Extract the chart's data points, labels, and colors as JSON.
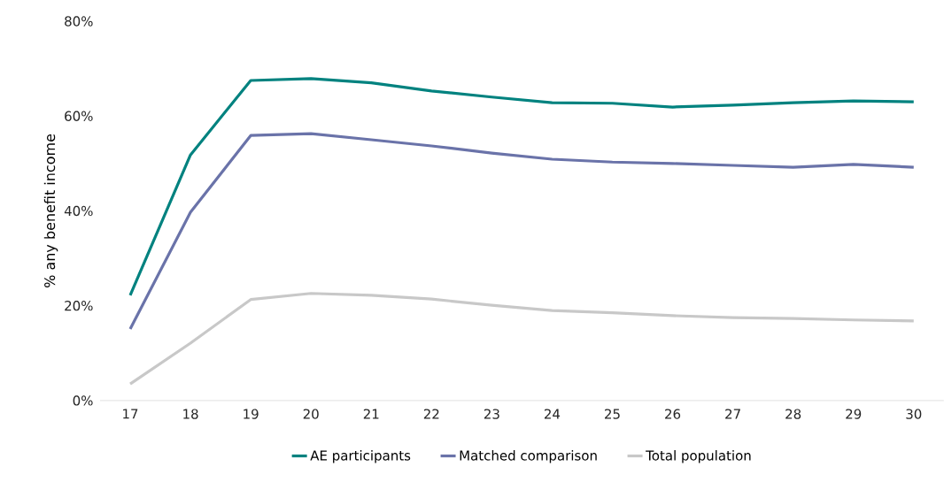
{
  "chart_data": {
    "type": "line",
    "ylabel": "% any benefit income",
    "categories": [
      "17",
      "18",
      "19",
      "20",
      "21",
      "22",
      "23",
      "24",
      "25",
      "26",
      "27",
      "28",
      "29",
      "30"
    ],
    "ylim": [
      0,
      80
    ],
    "yticks": [
      {
        "value": 0,
        "label": "0%"
      },
      {
        "value": 20,
        "label": "20%"
      },
      {
        "value": 40,
        "label": "40%"
      },
      {
        "value": 60,
        "label": "60%"
      },
      {
        "value": 80,
        "label": "80%"
      }
    ],
    "series": [
      {
        "name": "AE participants",
        "color": "#00827f",
        "values": [
          22.2,
          51.8,
          67.5,
          67.9,
          67,
          65.3,
          64,
          62.8,
          62.7,
          61.9,
          62.3,
          62.8,
          63.2,
          63
        ]
      },
      {
        "name": "Matched comparison",
        "color": "#6a73a9",
        "values": [
          15.1,
          39.7,
          55.9,
          56.3,
          55,
          53.7,
          52.2,
          50.9,
          50.3,
          50,
          49.6,
          49.2,
          49.8,
          49.2
        ]
      },
      {
        "name": "Total population",
        "color": "#c8c8c8",
        "values": [
          3.5,
          12.1,
          21.3,
          22.6,
          22.2,
          21.4,
          20.1,
          19,
          18.5,
          17.9,
          17.5,
          17.3,
          17,
          16.8
        ]
      }
    ],
    "legend": "bottom",
    "grid": false,
    "marker": "none",
    "line_style": "solid"
  }
}
